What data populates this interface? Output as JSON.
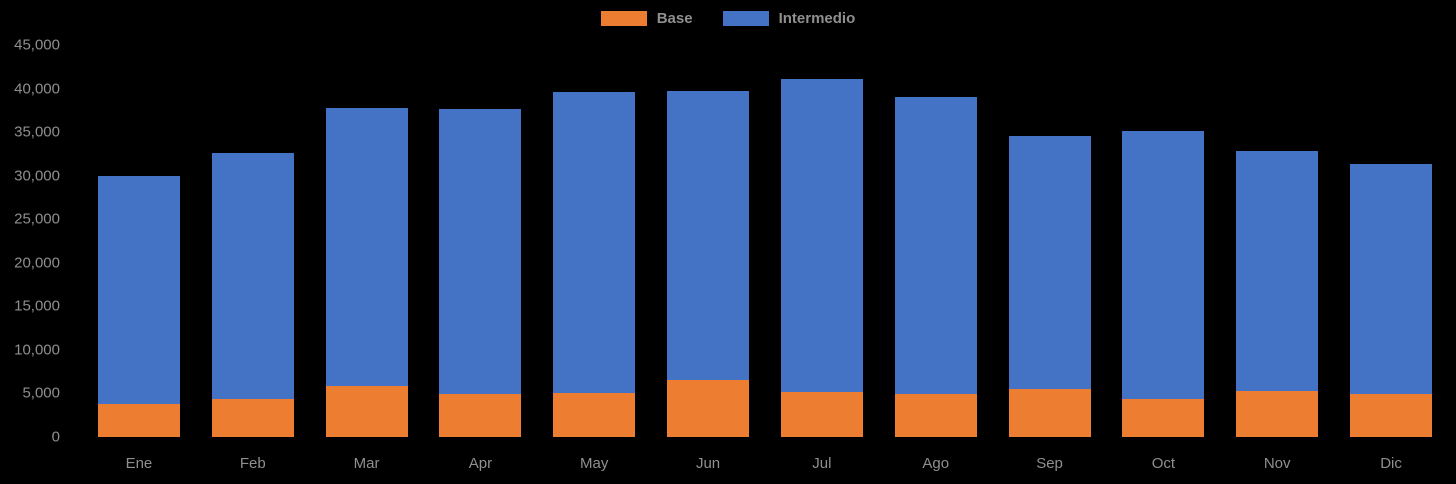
{
  "chart_data": {
    "type": "bar",
    "stacked": true,
    "title": "",
    "xlabel": "",
    "ylabel": "",
    "categories": [
      "Ene",
      "Feb",
      "Mar",
      "Apr",
      "May",
      "Jun",
      "Jul",
      "Ago",
      "Sep",
      "Oct",
      "Nov",
      "Dic"
    ],
    "series": [
      {
        "name": "Base",
        "color": "#ED7D31",
        "values": [
          3800,
          4400,
          5900,
          4900,
          5000,
          6500,
          5200,
          4900,
          5500,
          4400,
          5300,
          4900
        ]
      },
      {
        "name": "Intermedio",
        "color": "#4472C4",
        "values": [
          26200,
          28200,
          31900,
          32700,
          34600,
          33200,
          35900,
          34100,
          29000,
          30700,
          27500,
          26400
        ]
      }
    ],
    "totals": [
      30000,
      32600,
      37800,
      37600,
      39600,
      39700,
      41100,
      39000,
      34500,
      35100,
      32800,
      31300
    ],
    "ylim": [
      0,
      45000
    ],
    "ytick_step": 5000,
    "yticks": [
      {
        "value": 0,
        "label": "0"
      },
      {
        "value": 5000,
        "label": "5,000"
      },
      {
        "value": 10000,
        "label": "10,000"
      },
      {
        "value": 15000,
        "label": "15,000"
      },
      {
        "value": 20000,
        "label": "20,000"
      },
      {
        "value": 25000,
        "label": "25,000"
      },
      {
        "value": 30000,
        "label": "30,000"
      },
      {
        "value": 35000,
        "label": "35,000"
      },
      {
        "value": 40000,
        "label": "40,000"
      },
      {
        "value": 45000,
        "label": "45,000"
      }
    ],
    "legend_position": "top",
    "grid": false,
    "background_color": "#000000",
    "text_color": "#8f8f8f"
  }
}
